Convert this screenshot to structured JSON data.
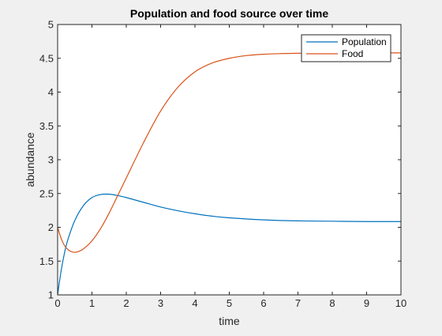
{
  "chart_data": {
    "type": "line",
    "title": "Population and food source over time",
    "xlabel": "time",
    "ylabel": "abundance",
    "xlim": [
      0,
      10
    ],
    "ylim": [
      1,
      5
    ],
    "xticks": [
      0,
      1,
      2,
      3,
      4,
      5,
      6,
      7,
      8,
      9,
      10
    ],
    "xtick_labels": [
      "0",
      "1",
      "2",
      "3",
      "4",
      "5",
      "6",
      "7",
      "8",
      "9",
      "10"
    ],
    "yticks": [
      1,
      1.5,
      2,
      2.5,
      3,
      3.5,
      4,
      4.5,
      5
    ],
    "ytick_labels": [
      "1",
      "1.5",
      "2",
      "2.5",
      "3",
      "3.5",
      "4",
      "4.5",
      "5"
    ],
    "grid": false,
    "legend_position": "top-right",
    "series": [
      {
        "name": "Population",
        "color": "#0072BD",
        "x": [
          0,
          0.1,
          0.2,
          0.3,
          0.5,
          0.75,
          1.0,
          1.25,
          1.5,
          1.75,
          2.0,
          2.5,
          3.0,
          3.5,
          4.0,
          4.5,
          5.0,
          6.0,
          7.0,
          8.0,
          9.0,
          10.0
        ],
        "y": [
          1.0,
          1.35,
          1.62,
          1.82,
          2.1,
          2.32,
          2.44,
          2.485,
          2.49,
          2.47,
          2.44,
          2.37,
          2.3,
          2.245,
          2.2,
          2.165,
          2.14,
          2.11,
          2.095,
          2.09,
          2.085,
          2.085
        ]
      },
      {
        "name": "Food",
        "color": "#D95319",
        "x": [
          0,
          0.1,
          0.2,
          0.3,
          0.4,
          0.5,
          0.6,
          0.75,
          1.0,
          1.25,
          1.5,
          1.75,
          2.0,
          2.5,
          3.0,
          3.5,
          4.0,
          4.5,
          5.0,
          5.5,
          6.0,
          6.5,
          7.0,
          8.0,
          9.0,
          10.0
        ],
        "y": [
          2.0,
          1.84,
          1.73,
          1.67,
          1.64,
          1.63,
          1.64,
          1.68,
          1.8,
          1.98,
          2.21,
          2.47,
          2.73,
          3.25,
          3.72,
          4.07,
          4.3,
          4.43,
          4.5,
          4.54,
          4.56,
          4.57,
          4.575,
          4.58,
          4.58,
          4.58
        ]
      }
    ]
  }
}
